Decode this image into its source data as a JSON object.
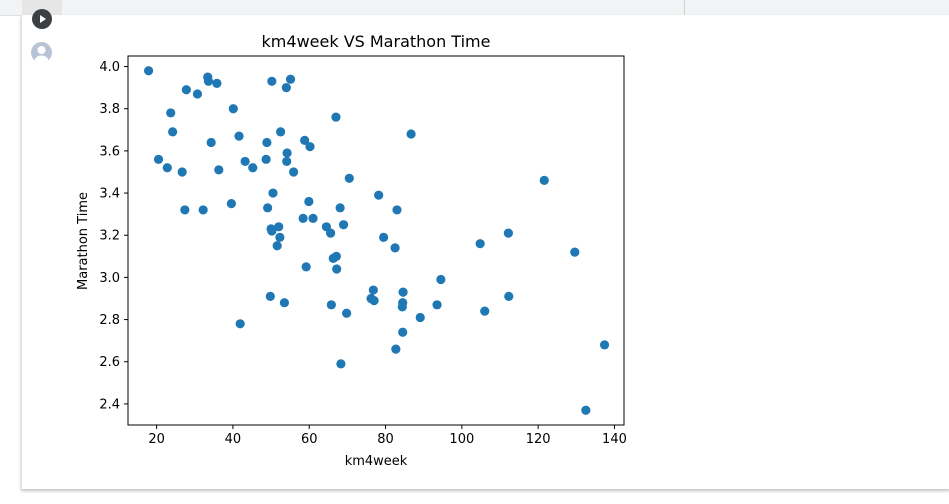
{
  "toolbar": {
    "run_icon": "play-icon",
    "avatar_icon": "user-avatar-icon"
  },
  "chart_data": {
    "type": "scatter",
    "title": "km4week VS Marathon Time",
    "xlabel": "km4week",
    "ylabel": "Marathon Time",
    "xlim": [
      12.5,
      142.5
    ],
    "ylim": [
      2.3,
      4.05
    ],
    "xticks": [
      20,
      40,
      60,
      80,
      100,
      120,
      140
    ],
    "yticks": [
      2.4,
      2.6,
      2.8,
      3.0,
      3.2,
      3.4,
      3.6,
      3.8,
      4.0
    ],
    "ytick_labels": [
      "2.4",
      "2.6",
      "2.8",
      "3.0",
      "3.2",
      "3.4",
      "3.6",
      "3.8",
      "4.0"
    ],
    "grid": false,
    "marker_color": "#1f77b4",
    "points": [
      [
        17.9,
        3.98
      ],
      [
        20.5,
        3.56
      ],
      [
        22.8,
        3.52
      ],
      [
        23.7,
        3.78
      ],
      [
        24.2,
        3.69
      ],
      [
        26.7,
        3.5
      ],
      [
        27.4,
        3.32
      ],
      [
        27.8,
        3.89
      ],
      [
        30.7,
        3.87
      ],
      [
        32.2,
        3.32
      ],
      [
        33.4,
        3.95
      ],
      [
        33.6,
        3.93
      ],
      [
        34.3,
        3.64
      ],
      [
        35.8,
        3.92
      ],
      [
        36.3,
        3.51
      ],
      [
        39.6,
        3.35
      ],
      [
        40.1,
        3.8
      ],
      [
        41.6,
        3.67
      ],
      [
        41.9,
        2.78
      ],
      [
        43.2,
        3.55
      ],
      [
        45.2,
        3.52
      ],
      [
        48.7,
        3.56
      ],
      [
        48.9,
        3.64
      ],
      [
        49.1,
        3.33
      ],
      [
        49.8,
        2.91
      ],
      [
        50.0,
        3.23
      ],
      [
        50.2,
        3.93
      ],
      [
        50.2,
        3.22
      ],
      [
        50.5,
        3.4
      ],
      [
        51.6,
        3.15
      ],
      [
        52.0,
        3.24
      ],
      [
        52.3,
        3.19
      ],
      [
        52.5,
        3.69
      ],
      [
        53.5,
        2.88
      ],
      [
        54.0,
        3.9
      ],
      [
        54.1,
        3.55
      ],
      [
        54.2,
        3.59
      ],
      [
        55.1,
        3.94
      ],
      [
        55.9,
        3.5
      ],
      [
        58.4,
        3.28
      ],
      [
        58.8,
        3.65
      ],
      [
        59.2,
        3.05
      ],
      [
        59.9,
        3.36
      ],
      [
        60.2,
        3.62
      ],
      [
        61.0,
        3.28
      ],
      [
        64.5,
        3.24
      ],
      [
        65.6,
        3.21
      ],
      [
        65.8,
        2.87
      ],
      [
        66.3,
        3.09
      ],
      [
        67.0,
        3.76
      ],
      [
        67.1,
        3.1
      ],
      [
        67.2,
        3.04
      ],
      [
        68.1,
        3.33
      ],
      [
        68.3,
        2.59
      ],
      [
        69.0,
        3.25
      ],
      [
        69.8,
        2.83
      ],
      [
        70.5,
        3.47
      ],
      [
        76.2,
        2.9
      ],
      [
        76.8,
        2.94
      ],
      [
        77.0,
        2.89
      ],
      [
        78.2,
        3.39
      ],
      [
        79.5,
        3.19
      ],
      [
        82.5,
        3.14
      ],
      [
        82.7,
        2.66
      ],
      [
        83.0,
        3.32
      ],
      [
        84.4,
        2.86
      ],
      [
        84.5,
        2.88
      ],
      [
        84.5,
        2.74
      ],
      [
        84.6,
        2.93
      ],
      [
        86.7,
        3.68
      ],
      [
        89.1,
        2.81
      ],
      [
        93.5,
        2.87
      ],
      [
        94.5,
        2.99
      ],
      [
        104.8,
        3.16
      ],
      [
        106.0,
        2.84
      ],
      [
        112.2,
        3.21
      ],
      [
        112.3,
        2.91
      ],
      [
        121.6,
        3.46
      ],
      [
        129.6,
        3.12
      ],
      [
        132.5,
        2.37
      ],
      [
        137.4,
        2.68
      ]
    ]
  }
}
